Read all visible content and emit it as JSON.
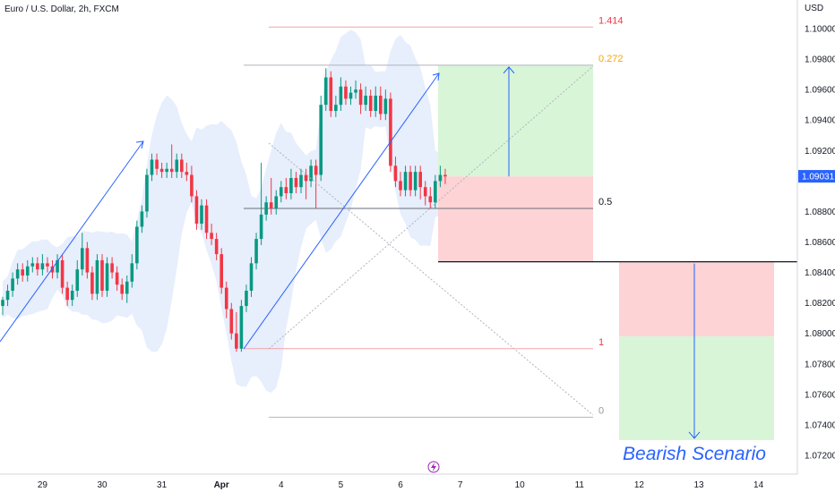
{
  "chart_data": {
    "type": "candlestick",
    "title": "Euro / U.S. Dollar, 2h, FXCM",
    "currency_label": "USD",
    "ylim": [
      1.071,
      1.102
    ],
    "y_ticks": [
      "1.10000",
      "1.09800",
      "1.09600",
      "1.09400",
      "1.09200",
      "1.08800",
      "1.08600",
      "1.08400",
      "1.08200",
      "1.08000",
      "1.07800",
      "1.07600",
      "1.07400",
      "1.07200"
    ],
    "x_ticks": [
      {
        "label": "29",
        "bar": 8
      },
      {
        "label": "30",
        "bar": 20
      },
      {
        "label": "31",
        "bar": 32
      },
      {
        "label": "Apr",
        "bar": 44
      },
      {
        "label": "4",
        "bar": 56
      },
      {
        "label": "5",
        "bar": 68
      },
      {
        "label": "6",
        "bar": 80
      },
      {
        "label": "7",
        "bar": 92
      },
      {
        "label": "10",
        "bar": 104
      },
      {
        "label": "11",
        "bar": 116
      },
      {
        "label": "12",
        "bar": 128
      },
      {
        "label": "13",
        "bar": 140
      },
      {
        "label": "14",
        "bar": 152
      }
    ],
    "current_price": "1.09031",
    "candles": [
      [
        1.0818,
        1.0822,
        1.0812,
        1.0824
      ],
      [
        1.0822,
        1.0828,
        1.0818,
        1.0832
      ],
      [
        1.0828,
        1.0836,
        1.0824,
        1.084
      ],
      [
        1.0836,
        1.0842,
        1.0832,
        1.0846
      ],
      [
        1.0842,
        1.0838,
        1.0834,
        1.0846
      ],
      [
        1.0838,
        1.0844,
        1.0834,
        1.0848
      ],
      [
        1.0844,
        1.0846,
        1.084,
        1.085
      ],
      [
        1.0846,
        1.0842,
        1.0838,
        1.085
      ],
      [
        1.0842,
        1.0846,
        1.0838,
        1.0852
      ],
      [
        1.0846,
        1.0844,
        1.084,
        1.085
      ],
      [
        1.0844,
        1.084,
        1.0836,
        1.0848
      ],
      [
        1.084,
        1.0848,
        1.0836,
        1.0852
      ],
      [
        1.0848,
        1.083,
        1.0826,
        1.0852
      ],
      [
        1.083,
        1.0822,
        1.0818,
        1.0834
      ],
      [
        1.0822,
        1.0828,
        1.0818,
        1.0832
      ],
      [
        1.0828,
        1.0842,
        1.0824,
        1.0848
      ],
      [
        1.0842,
        1.0856,
        1.0838,
        1.0866
      ],
      [
        1.0856,
        1.084,
        1.0836,
        1.086
      ],
      [
        1.084,
        1.0826,
        1.0822,
        1.0844
      ],
      [
        1.0826,
        1.0848,
        1.0822,
        1.0852
      ],
      [
        1.0848,
        1.0828,
        1.0824,
        1.0852
      ],
      [
        1.0828,
        1.0846,
        1.0824,
        1.085
      ],
      [
        1.0846,
        1.084,
        1.0836,
        1.085
      ],
      [
        1.084,
        1.0832,
        1.0828,
        1.0844
      ],
      [
        1.0832,
        1.0826,
        1.0822,
        1.0836
      ],
      [
        1.0826,
        1.0834,
        1.082,
        1.0838
      ],
      [
        1.0834,
        1.0846,
        1.083,
        1.0852
      ],
      [
        1.0846,
        1.087,
        1.0842,
        1.0874
      ],
      [
        1.087,
        1.088,
        1.0866,
        1.0884
      ],
      [
        1.088,
        1.0904,
        1.0876,
        1.0908
      ],
      [
        1.0904,
        1.0914,
        1.09,
        1.0918
      ],
      [
        1.0914,
        1.0908,
        1.0904,
        1.0918
      ],
      [
        1.0908,
        1.0906,
        1.0902,
        1.0912
      ],
      [
        1.0906,
        1.0908,
        1.0902,
        1.0912
      ],
      [
        1.0908,
        1.0906,
        1.0902,
        1.0924
      ],
      [
        1.0906,
        1.0914,
        1.0902,
        1.0918
      ],
      [
        1.0914,
        1.0906,
        1.0902,
        1.0918
      ],
      [
        1.0906,
        1.0904,
        1.09,
        1.0912
      ],
      [
        1.0904,
        1.089,
        1.0886,
        1.091
      ],
      [
        1.089,
        1.0872,
        1.0868,
        1.0894
      ],
      [
        1.0872,
        1.0884,
        1.0868,
        1.0888
      ],
      [
        1.0884,
        1.0866,
        1.0862,
        1.0888
      ],
      [
        1.0866,
        1.0862,
        1.0858,
        1.0872
      ],
      [
        1.0862,
        1.0852,
        1.0848,
        1.0866
      ],
      [
        1.0852,
        1.083,
        1.0826,
        1.0856
      ],
      [
        1.083,
        1.0816,
        1.081,
        1.0834
      ],
      [
        1.0816,
        1.08,
        1.0796,
        1.082
      ],
      [
        1.08,
        1.079,
        1.0788,
        1.0814
      ],
      [
        1.079,
        1.0818,
        1.0788,
        1.0822
      ],
      [
        1.0818,
        1.0828,
        1.0814,
        1.0832
      ],
      [
        1.0828,
        1.0846,
        1.0824,
        1.085
      ],
      [
        1.0846,
        1.0862,
        1.0842,
        1.0866
      ],
      [
        1.0862,
        1.0878,
        1.0858,
        1.0912
      ],
      [
        1.0878,
        1.0886,
        1.0874,
        1.089
      ],
      [
        1.0886,
        1.0882,
        1.0878,
        1.0902
      ],
      [
        1.0882,
        1.089,
        1.0878,
        1.0894
      ],
      [
        1.089,
        1.0896,
        1.0886,
        1.09
      ],
      [
        1.0896,
        1.0892,
        1.0888,
        1.0902
      ],
      [
        1.0892,
        1.0902,
        1.0888,
        1.0908
      ],
      [
        1.0902,
        1.0896,
        1.0892,
        1.0906
      ],
      [
        1.0896,
        1.0904,
        1.0892,
        1.0908
      ],
      [
        1.0904,
        1.09,
        1.0888,
        1.0908
      ],
      [
        1.09,
        1.091,
        1.0896,
        1.0914
      ],
      [
        1.091,
        1.0904,
        1.0882,
        1.0914
      ],
      [
        1.0904,
        1.095,
        1.09,
        1.0956
      ],
      [
        1.095,
        1.0968,
        1.0946,
        1.0974
      ],
      [
        1.0968,
        1.0946,
        1.0942,
        1.0972
      ],
      [
        1.0946,
        1.095,
        1.0942,
        1.0956
      ],
      [
        1.095,
        1.0962,
        1.0946,
        1.0968
      ],
      [
        1.0962,
        1.0954,
        1.095,
        1.0966
      ],
      [
        1.0954,
        1.0958,
        1.095,
        1.0962
      ],
      [
        1.0958,
        1.096,
        1.0954,
        1.0966
      ],
      [
        1.096,
        1.095,
        1.0944,
        1.0964
      ],
      [
        1.095,
        1.0956,
        1.0946,
        1.0962
      ],
      [
        1.0956,
        1.0946,
        1.0942,
        1.096
      ],
      [
        1.0946,
        1.0956,
        1.0942,
        1.0962
      ],
      [
        1.0956,
        1.0944,
        1.094,
        1.0962
      ],
      [
        1.0944,
        1.0954,
        1.094,
        1.096
      ],
      [
        1.0954,
        1.091,
        1.0906,
        1.0958
      ],
      [
        1.091,
        1.09,
        1.0896,
        1.0916
      ],
      [
        1.09,
        1.0894,
        1.089,
        1.0906
      ],
      [
        1.0894,
        1.0906,
        1.089,
        1.091
      ],
      [
        1.0906,
        1.0894,
        1.089,
        1.091
      ],
      [
        1.0894,
        1.0906,
        1.089,
        1.091
      ],
      [
        1.0906,
        1.0896,
        1.0888,
        1.091
      ],
      [
        1.0896,
        1.089,
        1.0884,
        1.09
      ],
      [
        1.089,
        1.0886,
        1.0882,
        1.0896
      ],
      [
        1.0886,
        1.09,
        1.0882,
        1.0904
      ],
      [
        1.09,
        1.0904,
        1.0896,
        1.091
      ],
      [
        1.0904,
        1.0903,
        1.0898,
        1.0908
      ]
    ],
    "fib_levels": [
      {
        "label": "1.414",
        "price": 1.1001,
        "color": "#f23645"
      },
      {
        "label": "0.272",
        "price": 1.0976,
        "color": "#f7a600"
      },
      {
        "label": "0.5",
        "price": 1.0882,
        "color": "#131722"
      },
      {
        "label": "1",
        "price": 1.079,
        "color": "#f23645"
      },
      {
        "label": "0",
        "price": 1.0745,
        "color": "#9598a1"
      }
    ],
    "annotations": {
      "horizontal_line_price": 1.0847,
      "long_position": {
        "entry": 1.0903,
        "target": 1.0976,
        "stop": 1.0847
      },
      "short_position": {
        "entry": 1.0847,
        "target": 1.073,
        "stop_zone_bottom": 1.0798
      },
      "scenario_label": "Bearish Scenario"
    },
    "colors": {
      "up": "#089981",
      "down": "#f23645",
      "band": "#e3ebfb",
      "profit_zone": "#d8f5d8",
      "loss_zone": "#fdd3d5",
      "arrow": "#2962ff",
      "price_badge": "#2962ff"
    }
  }
}
